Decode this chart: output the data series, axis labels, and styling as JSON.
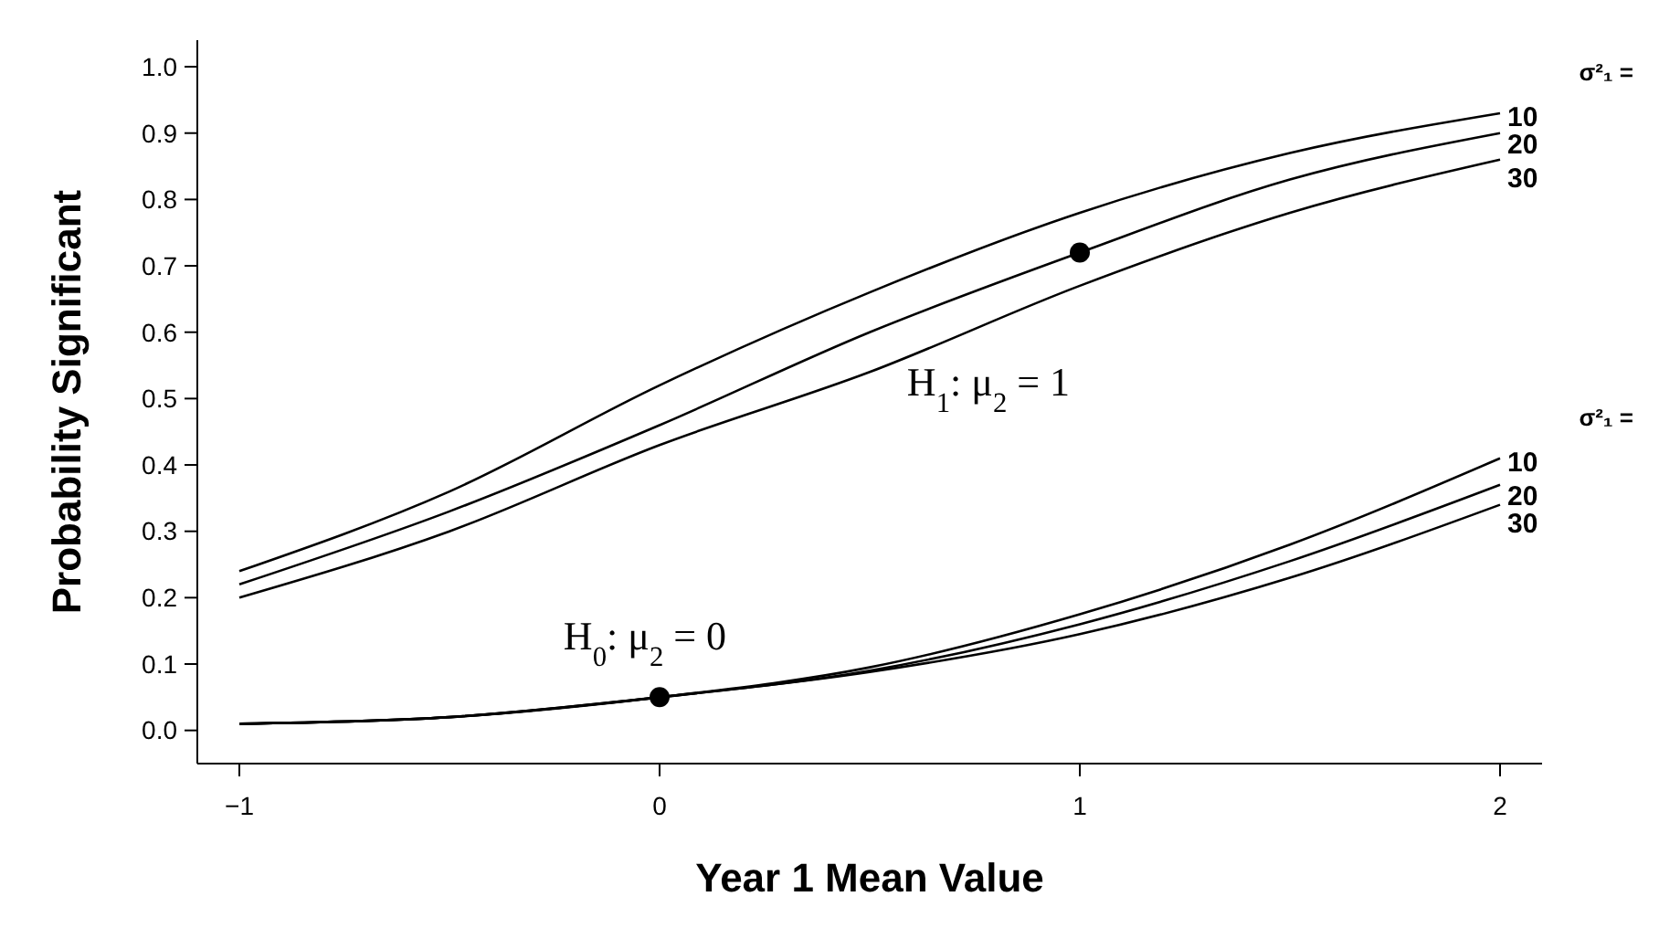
{
  "chart_data": {
    "type": "line",
    "xlabel": "Year 1 Mean Value",
    "ylabel": "Probability Significant",
    "x": [
      -1,
      -0.5,
      0,
      0.5,
      1,
      1.5,
      2
    ],
    "xlim": [
      -1.1,
      2.1
    ],
    "xticks": [
      {
        "value": -1,
        "label": "−1"
      },
      0,
      1,
      2
    ],
    "ylim": [
      -0.05,
      1.04
    ],
    "yticks": [
      {
        "value": 0,
        "label": "0.0"
      },
      0.1,
      0.2,
      0.3,
      0.4,
      0.5,
      0.6,
      0.7,
      0.8,
      0.9,
      {
        "value": 1,
        "label": "1.0"
      }
    ],
    "grid": false,
    "line_style": "solid",
    "series": [
      {
        "name": "10",
        "color": "#000000",
        "values": [
          0.24,
          0.36,
          0.52,
          0.66,
          0.78,
          0.87,
          0.93
        ]
      },
      {
        "name": "20",
        "color": "#000000",
        "values": [
          0.22,
          0.33,
          0.46,
          0.6,
          0.72,
          0.83,
          0.9
        ]
      },
      {
        "name": "30",
        "color": "#000000",
        "values": [
          0.2,
          0.3,
          0.43,
          0.54,
          0.67,
          0.78,
          0.86
        ]
      },
      {
        "name": "10",
        "color": "#000000",
        "values": [
          0.01,
          0.02,
          0.05,
          0.095,
          0.175,
          0.28,
          0.41
        ]
      },
      {
        "name": "20",
        "color": "#000000",
        "values": [
          0.01,
          0.02,
          0.05,
          0.09,
          0.16,
          0.255,
          0.37
        ]
      },
      {
        "name": "30",
        "color": "#000000",
        "values": [
          0.01,
          0.02,
          0.05,
          0.088,
          0.145,
          0.23,
          0.34
        ]
      },
      {
        "type": "scatter",
        "marker": "circle",
        "color": "#000000",
        "x": [
          0,
          1
        ],
        "values": [
          0.05,
          0.72
        ]
      }
    ],
    "annotations": [
      "σ²₁ =",
      "σ²₁ =",
      "H$_{0}$: μ$_{2}$ = 0",
      "H$_{1}$: μ$_{2}$ = 1"
    ]
  }
}
